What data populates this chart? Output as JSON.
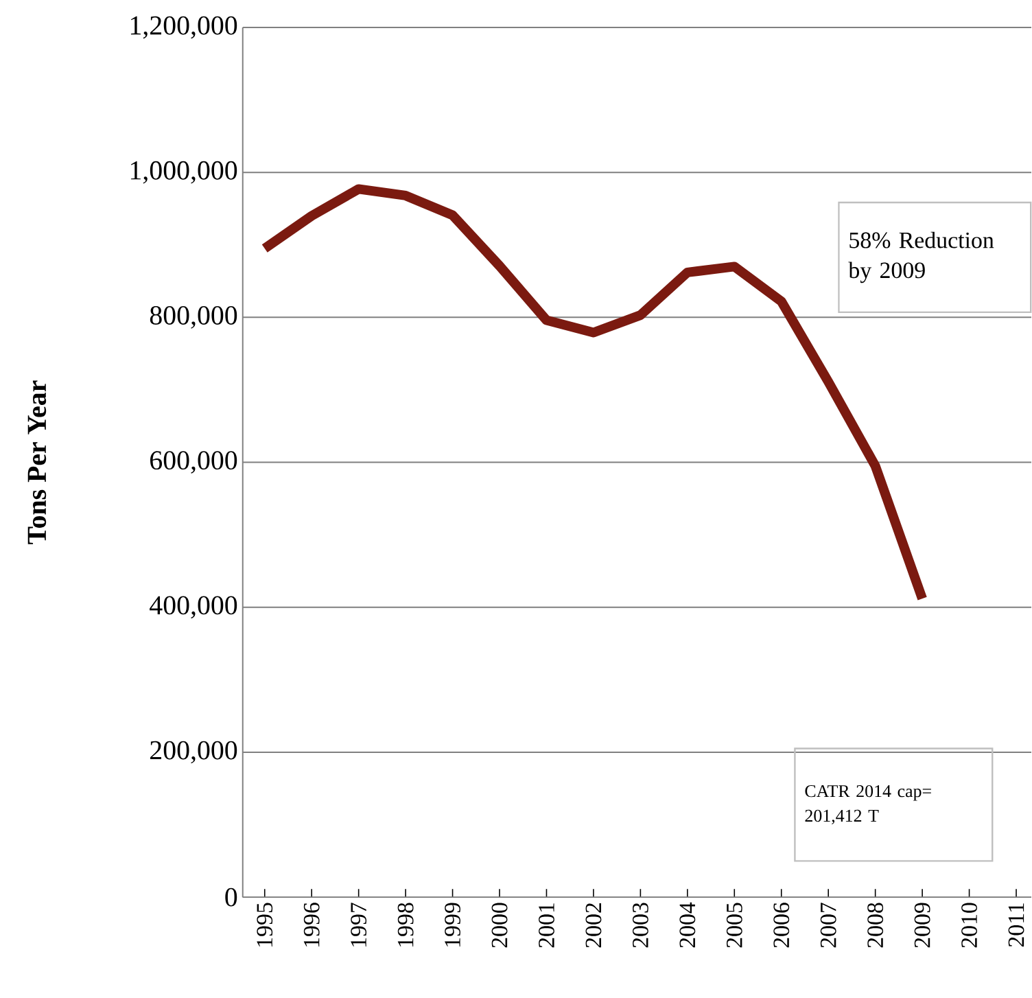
{
  "chart_data": {
    "type": "line",
    "ylabel": "Tons Per Year",
    "categories": [
      "1995",
      "1996",
      "1997",
      "1998",
      "1999",
      "2000",
      "2001",
      "2002",
      "2003",
      "2004",
      "2005",
      "2006",
      "2007",
      "2008",
      "2009",
      "2010",
      "2011"
    ],
    "series": [
      {
        "color": "#7b1a10",
        "values": [
          895000,
          940000,
          977000,
          968000,
          941000,
          871000,
          796000,
          779000,
          803000,
          862000,
          870000,
          822000,
          711000,
          595000,
          412000,
          null,
          null
        ]
      }
    ],
    "ylim": [
      0,
      1200000
    ],
    "yticks": [
      0,
      {
        "value": 200000,
        "label": "200,000"
      },
      {
        "value": 400000,
        "label": "400,000"
      },
      {
        "value": 600000,
        "label": "600,000"
      },
      {
        "value": 800000,
        "label": "800,000"
      },
      {
        "value": 1000000,
        "label": "1,000,000"
      },
      {
        "value": 1200000,
        "label": "1,200,000"
      }
    ],
    "grid": "y",
    "marker": "none",
    "line_style": "solid",
    "annotations": [
      "58% Reduction by 2009",
      "CATR 2014 cap= 201,412 T"
    ]
  }
}
